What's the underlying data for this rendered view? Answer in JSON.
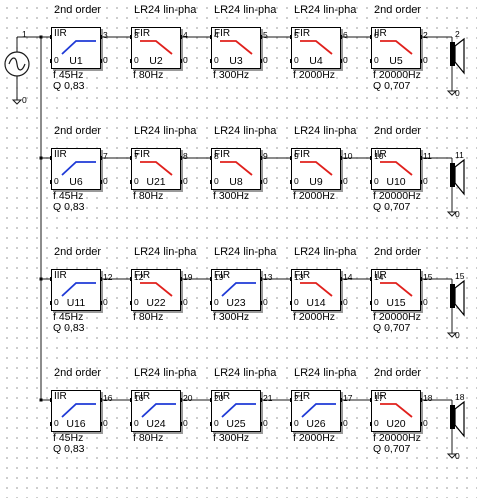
{
  "colors": {
    "iir_curve": "#1f3ad6",
    "fir_curve": "#e0201c",
    "wire": "#1a1a1a"
  },
  "rows": [
    {
      "blocks": [
        {
          "title": "2nd order",
          "type": "IIR",
          "name": "U1",
          "freq": "f  45Hz",
          "q": "Q  0,83",
          "curve": "highpass",
          "in_pin": "",
          "out_pin": "3"
        },
        {
          "title": "LR24 lin-pha",
          "type": "FIR",
          "name": "U2",
          "freq": "f  80Hz",
          "q": "",
          "curve": "lowpass",
          "in_pin": "3",
          "out_pin": "4"
        },
        {
          "title": "LR24 lin-pha",
          "type": "FIR",
          "name": "U3",
          "freq": "f  300Hz",
          "q": "",
          "curve": "lowpass",
          "in_pin": "4",
          "out_pin": "5"
        },
        {
          "title": "LR24 lin-pha",
          "type": "FIR",
          "name": "U4",
          "freq": "f  2000Hz",
          "q": "",
          "curve": "lowpass",
          "in_pin": "5",
          "out_pin": "6"
        },
        {
          "title": "2nd order",
          "type": "IIR",
          "name": "U5",
          "freq": "f  20000Hz",
          "q": "Q  0,707",
          "curve": "lowpass",
          "in_pin": "6",
          "out_pin": "2"
        }
      ],
      "speaker_node": "2"
    },
    {
      "blocks": [
        {
          "title": "2nd order",
          "type": "IIR",
          "name": "U6",
          "freq": "f  45Hz",
          "q": "Q  0,83",
          "curve": "highpass",
          "in_pin": "",
          "out_pin": "7"
        },
        {
          "title": "LR24 lin-pha",
          "type": "FIR",
          "name": "U21",
          "freq": "f  80Hz",
          "q": "",
          "curve": "lowpass",
          "in_pin": "7",
          "out_pin": "8"
        },
        {
          "title": "LR24 lin-pha",
          "type": "FIR",
          "name": "U8",
          "freq": "f  300Hz",
          "q": "",
          "curve": "lowpass",
          "in_pin": "8",
          "out_pin": "9"
        },
        {
          "title": "LR24 lin-pha",
          "type": "FIR",
          "name": "U9",
          "freq": "f  2000Hz",
          "q": "",
          "curve": "lowpass",
          "in_pin": "9",
          "out_pin": "10"
        },
        {
          "title": "2nd order",
          "type": "IIR",
          "name": "U10",
          "freq": "f  20000Hz",
          "q": "Q  0,707",
          "curve": "lowpass",
          "in_pin": "10",
          "out_pin": "11"
        }
      ],
      "speaker_node": "11"
    },
    {
      "blocks": [
        {
          "title": "2nd order",
          "type": "IIR",
          "name": "U11",
          "freq": "f  45Hz",
          "q": "Q  0,83",
          "curve": "highpass",
          "in_pin": "",
          "out_pin": "12"
        },
        {
          "title": "LR24 lin-pha",
          "type": "FIR",
          "name": "U22",
          "freq": "f  80Hz",
          "q": "",
          "curve": "lowpass",
          "in_pin": "12",
          "out_pin": "19"
        },
        {
          "title": "LR24 lin-pha",
          "type": "FIR",
          "name": "U23",
          "freq": "f  300Hz",
          "q": "",
          "curve": "highpass",
          "in_pin": "19",
          "out_pin": "13"
        },
        {
          "title": "LR24 lin-pha",
          "type": "FIR",
          "name": "U14",
          "freq": "f  2000Hz",
          "q": "",
          "curve": "lowpass",
          "in_pin": "13",
          "out_pin": "14"
        },
        {
          "title": "2nd order",
          "type": "IIR",
          "name": "U15",
          "freq": "f  20000Hz",
          "q": "Q  0,707",
          "curve": "lowpass",
          "in_pin": "14",
          "out_pin": "15"
        }
      ],
      "speaker_node": "15"
    },
    {
      "blocks": [
        {
          "title": "2nd order",
          "type": "IIR",
          "name": "U16",
          "freq": "f  45Hz",
          "q": "Q  0,83",
          "curve": "highpass",
          "in_pin": "",
          "out_pin": "16"
        },
        {
          "title": "LR24 lin-pha",
          "type": "FIR",
          "name": "U24",
          "freq": "f  80Hz",
          "q": "",
          "curve": "highpass",
          "in_pin": "16",
          "out_pin": "20"
        },
        {
          "title": "LR24 lin-pha",
          "type": "FIR",
          "name": "U25",
          "freq": "f  300Hz",
          "q": "",
          "curve": "highpass",
          "in_pin": "20",
          "out_pin": "21"
        },
        {
          "title": "LR24 lin-pha",
          "type": "FIR",
          "name": "U26",
          "freq": "f  2000Hz",
          "q": "",
          "curve": "highpass",
          "in_pin": "21",
          "out_pin": "17"
        },
        {
          "title": "2nd order",
          "type": "IIR",
          "name": "U20",
          "freq": "f  20000Hz",
          "q": "Q  0,707",
          "curve": "lowpass",
          "in_pin": "17",
          "out_pin": "18"
        }
      ],
      "speaker_node": "18"
    }
  ],
  "source": {
    "input_node": "1",
    "ground_node": "0"
  },
  "ground_label": "0"
}
